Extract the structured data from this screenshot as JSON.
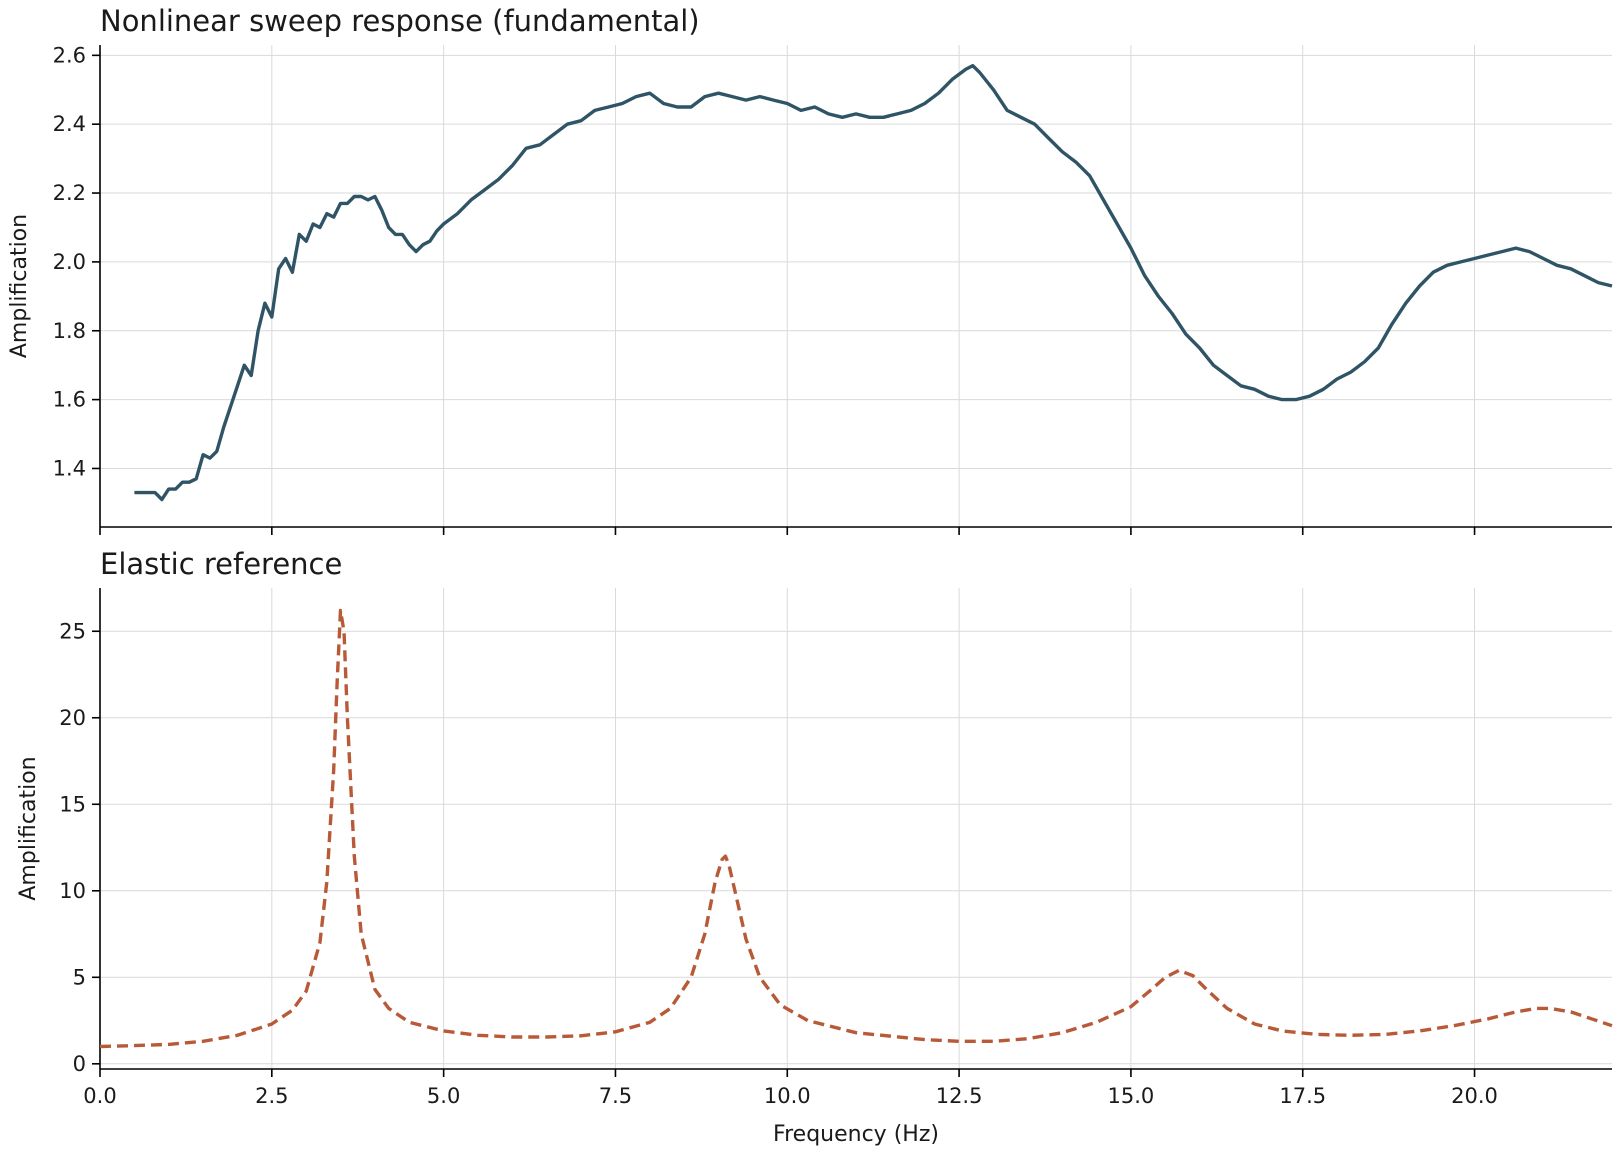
{
  "chart_data": [
    {
      "type": "line",
      "title": "Nonlinear sweep response (fundamental)",
      "xlabel": "",
      "ylabel": "Amplification",
      "xlim": [
        0,
        22
      ],
      "ylim": [
        1.23,
        2.63
      ],
      "xticks": [
        0,
        2.5,
        5,
        7.5,
        10,
        12.5,
        15,
        17.5,
        20
      ],
      "yticks": [
        1.4,
        1.6,
        1.8,
        2.0,
        2.2,
        2.4,
        2.6
      ],
      "ytick_labels": [
        "1.4",
        "1.6",
        "1.8",
        "2.0",
        "2.2",
        "2.4",
        "2.6"
      ],
      "xtick_labels_visible": false,
      "grid": true,
      "color": "#2f5466",
      "line_style": "solid",
      "series": [
        {
          "x": [
            0.5,
            0.7,
            0.8,
            0.9,
            1.0,
            1.1,
            1.2,
            1.3,
            1.4,
            1.5,
            1.6,
            1.7,
            1.8,
            1.9,
            2.0,
            2.1,
            2.2,
            2.3,
            2.4,
            2.5,
            2.6,
            2.7,
            2.8,
            2.9,
            3.0,
            3.1,
            3.2,
            3.3,
            3.4,
            3.5,
            3.6,
            3.7,
            3.8,
            3.9,
            4.0,
            4.1,
            4.2,
            4.3,
            4.4,
            4.5,
            4.6,
            4.7,
            4.8,
            4.9,
            5.0,
            5.2,
            5.4,
            5.6,
            5.8,
            6.0,
            6.2,
            6.4,
            6.6,
            6.8,
            7.0,
            7.2,
            7.4,
            7.6,
            7.8,
            8.0,
            8.2,
            8.4,
            8.6,
            8.8,
            9.0,
            9.2,
            9.4,
            9.6,
            9.8,
            10.0,
            10.2,
            10.4,
            10.6,
            10.8,
            11.0,
            11.2,
            11.4,
            11.6,
            11.8,
            12.0,
            12.2,
            12.4,
            12.6,
            12.7,
            12.8,
            13.0,
            13.2,
            13.4,
            13.6,
            13.8,
            14.0,
            14.2,
            14.4,
            14.6,
            14.8,
            15.0,
            15.2,
            15.4,
            15.6,
            15.8,
            16.0,
            16.2,
            16.4,
            16.6,
            16.8,
            17.0,
            17.2,
            17.4,
            17.6,
            17.8,
            18.0,
            18.2,
            18.4,
            18.6,
            18.8,
            19.0,
            19.2,
            19.4,
            19.6,
            19.8,
            20.0,
            20.2,
            20.4,
            20.6,
            20.8,
            21.0,
            21.2,
            21.4,
            21.6,
            21.8,
            22.0
          ],
          "y": [
            1.33,
            1.33,
            1.33,
            1.31,
            1.34,
            1.34,
            1.36,
            1.36,
            1.37,
            1.44,
            1.43,
            1.45,
            1.52,
            1.58,
            1.64,
            1.7,
            1.67,
            1.8,
            1.88,
            1.84,
            1.98,
            2.01,
            1.97,
            2.08,
            2.06,
            2.11,
            2.1,
            2.14,
            2.13,
            2.17,
            2.17,
            2.19,
            2.19,
            2.18,
            2.19,
            2.15,
            2.1,
            2.08,
            2.08,
            2.05,
            2.03,
            2.05,
            2.06,
            2.09,
            2.11,
            2.14,
            2.18,
            2.21,
            2.24,
            2.28,
            2.33,
            2.34,
            2.37,
            2.4,
            2.41,
            2.44,
            2.45,
            2.46,
            2.48,
            2.49,
            2.46,
            2.45,
            2.45,
            2.48,
            2.49,
            2.48,
            2.47,
            2.48,
            2.47,
            2.46,
            2.44,
            2.45,
            2.43,
            2.42,
            2.43,
            2.42,
            2.42,
            2.43,
            2.44,
            2.46,
            2.49,
            2.53,
            2.56,
            2.57,
            2.55,
            2.5,
            2.44,
            2.42,
            2.4,
            2.36,
            2.32,
            2.29,
            2.25,
            2.18,
            2.11,
            2.04,
            1.96,
            1.9,
            1.85,
            1.79,
            1.75,
            1.7,
            1.67,
            1.64,
            1.63,
            1.61,
            1.6,
            1.6,
            1.61,
            1.63,
            1.66,
            1.68,
            1.71,
            1.75,
            1.82,
            1.88,
            1.93,
            1.97,
            1.99,
            2.0,
            2.01,
            2.02,
            2.03,
            2.04,
            2.03,
            2.01,
            1.99,
            1.98,
            1.96,
            1.94,
            1.93
          ]
        }
      ]
    },
    {
      "type": "line",
      "title": "Elastic reference",
      "xlabel": "Frequency (Hz)",
      "ylabel": "Amplification",
      "xlim": [
        0,
        22
      ],
      "ylim": [
        -0.3,
        27.5
      ],
      "xticks": [
        0,
        2.5,
        5,
        7.5,
        10,
        12.5,
        15,
        17.5,
        20
      ],
      "xtick_labels": [
        "0.0",
        "2.5",
        "5.0",
        "7.5",
        "10.0",
        "12.5",
        "15.0",
        "17.5",
        "20.0"
      ],
      "yticks": [
        0,
        5,
        10,
        15,
        20,
        25
      ],
      "ytick_labels": [
        "0",
        "5",
        "10",
        "15",
        "20",
        "25"
      ],
      "grid": true,
      "color": "#b85a38",
      "line_style": "dashed",
      "series": [
        {
          "x": [
            0,
            0.5,
            1.0,
            1.5,
            2.0,
            2.5,
            2.8,
            3.0,
            3.2,
            3.3,
            3.4,
            3.45,
            3.5,
            3.55,
            3.6,
            3.7,
            3.8,
            4.0,
            4.2,
            4.5,
            5.0,
            5.5,
            6.0,
            6.5,
            7.0,
            7.5,
            8.0,
            8.3,
            8.6,
            8.8,
            8.95,
            9.05,
            9.1,
            9.15,
            9.25,
            9.4,
            9.6,
            9.9,
            10.3,
            11.0,
            12.0,
            12.5,
            13.0,
            13.5,
            14.0,
            14.5,
            15.0,
            15.3,
            15.5,
            15.7,
            15.9,
            16.1,
            16.4,
            16.8,
            17.2,
            17.7,
            18.2,
            18.7,
            19.2,
            19.7,
            20.2,
            20.6,
            20.9,
            21.1,
            21.4,
            21.7,
            22.0
          ],
          "y": [
            1.0,
            1.05,
            1.12,
            1.3,
            1.65,
            2.3,
            3.1,
            4.2,
            7.0,
            10.5,
            17.0,
            22.0,
            26.2,
            25.0,
            20.0,
            12.0,
            7.5,
            4.3,
            3.2,
            2.4,
            1.9,
            1.65,
            1.55,
            1.55,
            1.62,
            1.85,
            2.4,
            3.2,
            5.0,
            7.5,
            10.5,
            11.8,
            12.0,
            11.5,
            9.8,
            7.2,
            5.0,
            3.4,
            2.5,
            1.8,
            1.4,
            1.3,
            1.3,
            1.45,
            1.8,
            2.4,
            3.3,
            4.3,
            5.0,
            5.4,
            5.1,
            4.3,
            3.2,
            2.3,
            1.9,
            1.7,
            1.65,
            1.7,
            1.9,
            2.2,
            2.6,
            3.0,
            3.2,
            3.2,
            3.0,
            2.6,
            2.2
          ]
        }
      ]
    }
  ]
}
